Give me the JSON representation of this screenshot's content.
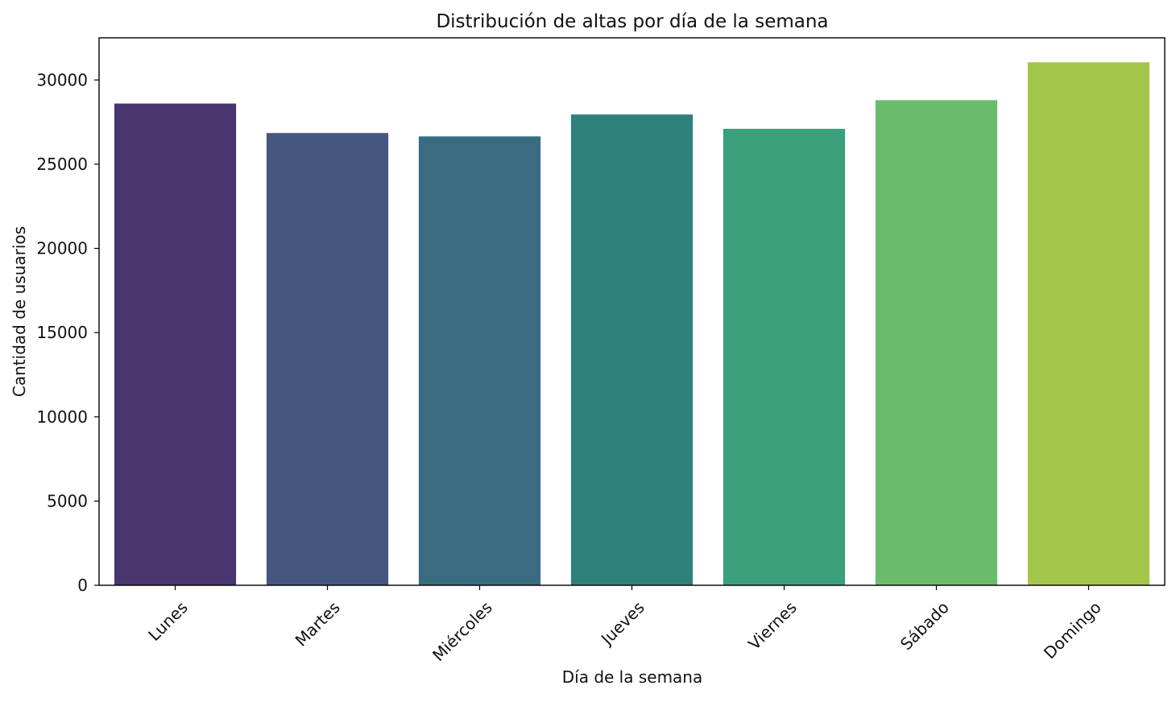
{
  "chart_data": {
    "type": "bar",
    "title": "Distribución de altas por día de la semana",
    "xlabel": "Día de la semana",
    "ylabel": "Cantidad de usuarios",
    "categories": [
      "Lunes",
      "Martes",
      "Miércoles",
      "Jueves",
      "Viernes",
      "Sábado",
      "Domingo"
    ],
    "values": [
      28600,
      26850,
      26650,
      27950,
      27100,
      28800,
      31050
    ],
    "colors": [
      "#4a366e",
      "#45577f",
      "#396c80",
      "#2e817b",
      "#3c9f7b",
      "#6abc6c",
      "#a2c64a"
    ],
    "ylim": [
      0,
      32500
    ],
    "yticks": [
      0,
      5000,
      10000,
      15000,
      20000,
      25000,
      30000
    ],
    "ytick_labels": [
      "0",
      "5000",
      "10000",
      "15000",
      "20000",
      "25000",
      "30000"
    ],
    "grid": false,
    "legend": "none"
  }
}
